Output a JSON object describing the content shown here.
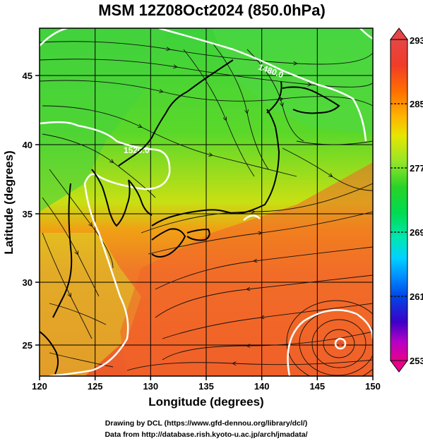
{
  "map": {
    "title": "MSM 12Z08Oct2024 (850.0hPa)",
    "x_axis_label": "Longitude (degrees)",
    "y_axis_label": "Latitude  (degrees)",
    "lon_range": [
      120,
      150
    ],
    "lat_range": [
      22.4,
      47.6
    ],
    "lon_ticks": [
      "120",
      "125",
      "130",
      "135",
      "140",
      "145",
      "150"
    ],
    "lat_ticks": [
      "25",
      "30",
      "35",
      "40",
      "45"
    ],
    "contour_labels": [
      "1520.0",
      "1480.0"
    ],
    "colorbar": {
      "ticks": [
        "293",
        "285",
        "277",
        "269",
        "261",
        "253"
      ],
      "min": 253,
      "max": 293,
      "colors": [
        "#e8008c",
        "#b400c8",
        "#3c00c8",
        "#0046e6",
        "#008cff",
        "#00d2ff",
        "#00e6b4",
        "#00dc50",
        "#28d228",
        "#96e628",
        "#e6e600",
        "#ffb400",
        "#ff6e00",
        "#f03c28",
        "#e64646"
      ]
    },
    "credits": [
      "Drawing by DCL (https://www.gfd-dennou.org/library/dcl/)",
      "Data from http://database.rish.kyoto-u.ac.jp/arch/jmadata/"
    ]
  }
}
